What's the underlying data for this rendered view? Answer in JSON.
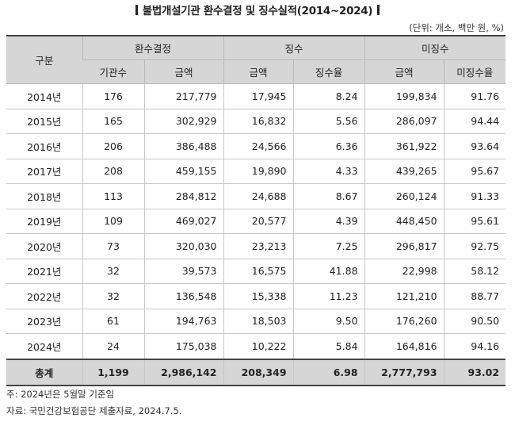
{
  "title": "불법개설기관 환수결정 및 징수실적(2014~2024)",
  "unit": "(단위: 개소, 백만 원, %)",
  "header": {
    "category": "구분",
    "group_decision": "환수결정",
    "group_collection": "징수",
    "group_uncollected": "미징수",
    "sub": [
      "기관수",
      "금액",
      "금액",
      "징수율",
      "금액",
      "미징수율"
    ]
  },
  "rows": [
    [
      "2014년",
      "176",
      "217,779",
      "17,945",
      "8.24",
      "199,834",
      "91.76"
    ],
    [
      "2015년",
      "165",
      "302,929",
      "16,832",
      "5.56",
      "286,097",
      "94.44"
    ],
    [
      "2016년",
      "206",
      "386,488",
      "24,566",
      "6.36",
      "361,922",
      "93.64"
    ],
    [
      "2017년",
      "208",
      "459,155",
      "19,890",
      "4.33",
      "439,265",
      "95.67"
    ],
    [
      "2018년",
      "113",
      "284,812",
      "24,688",
      "8.67",
      "260,124",
      "91.33"
    ],
    [
      "2019년",
      "109",
      "469,027",
      "20,577",
      "4.39",
      "448,450",
      "95.61"
    ],
    [
      "2020년",
      "73",
      "320,030",
      "23,213",
      "7.25",
      "296,817",
      "92.75"
    ],
    [
      "2021년",
      "32",
      "39,573",
      "16,575",
      "41.88",
      "22,998",
      "58.12"
    ],
    [
      "2022년",
      "32",
      "136,548",
      "15,338",
      "11.23",
      "121,210",
      "88.77"
    ],
    [
      "2023년",
      "61",
      "194,763",
      "18,503",
      "9.50",
      "176,260",
      "90.50"
    ],
    [
      "2024년",
      "24",
      "175,038",
      "10,222",
      "5.84",
      "164,816",
      "94.16"
    ]
  ],
  "total": [
    "총계",
    "1,199",
    "2,986,142",
    "208,349",
    "6.98",
    "2,777,793",
    "93.02"
  ],
  "notes": [
    "주: 2024년은 5월말 기준임",
    "자료: 국민건강보험공단 제출자료, 2024.7.5."
  ]
}
